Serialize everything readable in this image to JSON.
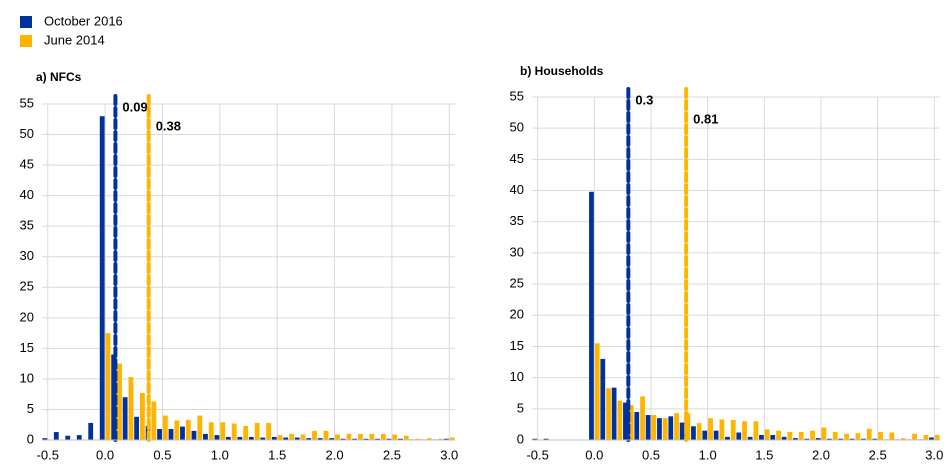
{
  "chart_data": [
    {
      "type": "bar",
      "title": "a) NFCs",
      "x": [
        -0.5,
        -0.4,
        -0.3,
        -0.2,
        -0.1,
        0.0,
        0.1,
        0.2,
        0.3,
        0.4,
        0.5,
        0.6,
        0.7,
        0.8,
        0.9,
        1.0,
        1.1,
        1.2,
        1.3,
        1.4,
        1.5,
        1.6,
        1.7,
        1.8,
        1.9,
        2.0,
        2.1,
        2.2,
        2.3,
        2.4,
        2.5,
        2.6,
        2.7,
        2.8,
        2.9,
        3.0
      ],
      "series": [
        {
          "name": "October 2016",
          "color": "#003299",
          "values": [
            0.3,
            1.3,
            0.7,
            0.8,
            2.8,
            53,
            14,
            7,
            3.8,
            2.3,
            1.8,
            1.8,
            2.2,
            1.5,
            1,
            0.8,
            0.5,
            0.5,
            0.5,
            0.4,
            0.5,
            0.4,
            0.4,
            0.3,
            0.3,
            0.3,
            0.2,
            0.2,
            0.2,
            0.2,
            0.2,
            0.2,
            0.1,
            0.1,
            0.1,
            0.2
          ]
        },
        {
          "name": "June 2014",
          "color": "#ffb400",
          "values": [
            0,
            0,
            0,
            0,
            0,
            17.5,
            12.5,
            10.3,
            7.7,
            6.3,
            4,
            3.2,
            3.3,
            4,
            2.9,
            2.9,
            2.7,
            2.3,
            2.8,
            2.8,
            0.8,
            1,
            0.9,
            1.5,
            1.5,
            0.9,
            1,
            1,
            1,
            1,
            0.9,
            0.7,
            0.2,
            0.3,
            0.2,
            0.4
          ]
        }
      ],
      "reference_lines": [
        {
          "x": 0.09,
          "color": "#003299"
        },
        {
          "x": 0.38,
          "color": "#ffb400"
        }
      ],
      "xlim": [
        -0.55,
        3.05
      ],
      "xticks": [
        -0.5,
        0.5,
        {
          "value": 0,
          "label": "0.0"
        },
        {
          "value": 1,
          "label": "1.0"
        },
        1.5,
        {
          "value": 2,
          "label": "2.0"
        },
        2.5,
        {
          "value": 3,
          "label": "3.0"
        }
      ],
      "ylim": [
        0,
        55
      ],
      "yticks": [
        0,
        5,
        10,
        15,
        20,
        25,
        30,
        35,
        40,
        45,
        50,
        55
      ],
      "grid": true
    },
    {
      "type": "bar",
      "title": "b) Households",
      "x": [
        -0.5,
        -0.4,
        -0.3,
        -0.2,
        -0.1,
        0.0,
        0.1,
        0.2,
        0.3,
        0.4,
        0.5,
        0.6,
        0.7,
        0.8,
        0.9,
        1.0,
        1.1,
        1.2,
        1.3,
        1.4,
        1.5,
        1.6,
        1.7,
        1.8,
        1.9,
        2.0,
        2.1,
        2.2,
        2.3,
        2.4,
        2.5,
        2.6,
        2.7,
        2.8,
        2.9,
        3.0
      ],
      "series": [
        {
          "name": "October 2016",
          "color": "#003299",
          "values": [
            0.2,
            0.2,
            0,
            0,
            0,
            39.8,
            13,
            8.4,
            6,
            4.5,
            4,
            3.5,
            3.8,
            2.8,
            2.2,
            1.5,
            1.5,
            0.5,
            1.2,
            0.5,
            0.8,
            0.8,
            0.5,
            0.3,
            0.2,
            0.3,
            0.2,
            0.2,
            0.2,
            0.2,
            0.2,
            0.1,
            0.1,
            0.1,
            0.1,
            0.4
          ]
        },
        {
          "name": "June 2014",
          "color": "#ffb400",
          "values": [
            0,
            0,
            0,
            0,
            0,
            15.5,
            8.3,
            6.3,
            5.6,
            7,
            4,
            3.5,
            4.3,
            4.3,
            2.7,
            3.5,
            3.3,
            3.2,
            3,
            3,
            1.7,
            1.5,
            1.3,
            1.3,
            1.5,
            2,
            1.3,
            1,
            1.1,
            1.8,
            1.3,
            1.2,
            0.3,
            1,
            0.8,
            0.8
          ]
        }
      ],
      "reference_lines": [
        {
          "x": 0.3,
          "color": "#003299"
        },
        {
          "x": 0.81,
          "color": "#ffb400"
        }
      ],
      "xlim": [
        -0.55,
        3.05
      ],
      "xticks": [
        -0.5,
        0.5,
        {
          "value": 0,
          "label": "0.0"
        },
        {
          "value": 1,
          "label": "1.0"
        },
        1.5,
        {
          "value": 2,
          "label": "2.0"
        },
        2.5,
        {
          "value": 3,
          "label": "3.0"
        }
      ],
      "ylim": [
        0,
        55
      ],
      "yticks": [
        0,
        5,
        10,
        15,
        20,
        25,
        30,
        35,
        40,
        45,
        50,
        55
      ],
      "grid": true
    }
  ]
}
